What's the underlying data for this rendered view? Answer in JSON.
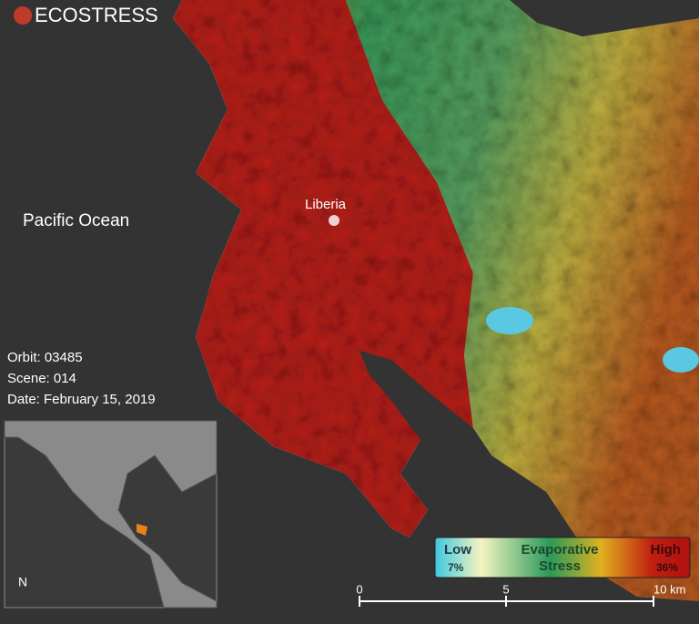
{
  "header": {
    "title": "ECOSTRESS"
  },
  "labels": {
    "ocean": "Pacific Ocean",
    "city": "Liberia"
  },
  "info": {
    "orbit": "Orbit: 03485",
    "scene": "Scene: 014",
    "date": "Date: February 15, 2019"
  },
  "north_arrow": "N",
  "legend": {
    "low": "Low",
    "low_value": "7%",
    "title_line1": "Evaporative",
    "title_line2": "Stress",
    "high": "High",
    "high_value": "36%"
  },
  "scale_bar": {
    "labels": [
      "0",
      "5",
      "10 km"
    ]
  }
}
